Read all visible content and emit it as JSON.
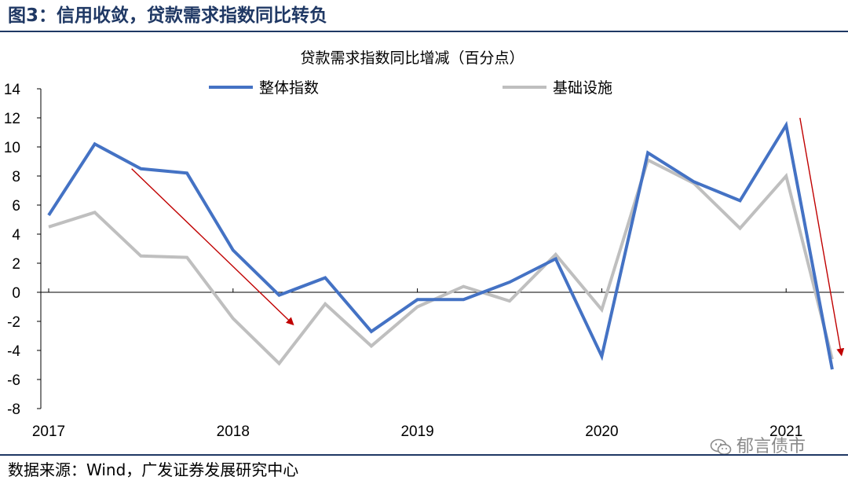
{
  "header": {
    "figure_title": "图3：信用收敛，贷款需求指数同比转负"
  },
  "footer": {
    "source": "数据来源：Wind，广发证券发展研究中心"
  },
  "watermark": {
    "text": "郁言债市",
    "icon": "wechat-icon"
  },
  "colors": {
    "header_blue": "#1f3864",
    "series_total": "#4472c4",
    "series_infra": "#bfbfbf",
    "arrow": "#c00000"
  },
  "chart_data": {
    "type": "line",
    "title": "贷款需求指数同比增减（百分点）",
    "ylim": [
      -8,
      14
    ],
    "yticks": [
      -8,
      -6,
      -4,
      -2,
      0,
      2,
      4,
      6,
      8,
      10,
      12,
      14
    ],
    "year_labels": [
      "2017",
      "2018",
      "2019",
      "2020",
      "2021"
    ],
    "x_quarters": [
      "2017Q1",
      "2017Q2",
      "2017Q3",
      "2017Q4",
      "2018Q1",
      "2018Q2",
      "2018Q3",
      "2018Q4",
      "2019Q1",
      "2019Q2",
      "2019Q3",
      "2019Q4",
      "2020Q1",
      "2020Q2",
      "2020Q3",
      "2020Q4",
      "2021Q1",
      "2021Q2"
    ],
    "legend_position": "top",
    "grid": false,
    "series": [
      {
        "name": "整体指数",
        "color": "#4472c4",
        "values": [
          5.3,
          10.2,
          8.5,
          8.2,
          2.9,
          -0.2,
          1.0,
          -2.7,
          -0.5,
          -0.5,
          0.7,
          2.3,
          -4.4,
          9.6,
          7.6,
          6.3,
          11.5,
          -5.3
        ]
      },
      {
        "name": "基础设施",
        "color": "#bfbfbf",
        "values": [
          4.5,
          5.5,
          2.5,
          2.4,
          -1.8,
          -4.9,
          -0.8,
          -3.7,
          -1.0,
          0.4,
          -0.6,
          2.6,
          -1.2,
          9.1,
          7.5,
          4.4,
          8.0,
          -4.6
        ]
      }
    ],
    "annotations": [
      {
        "type": "arrow",
        "from_x_index": 1.8,
        "from_y": 8.5,
        "to_x_index": 5.3,
        "to_y": -2.2
      },
      {
        "type": "arrow",
        "from_x_index": 16.3,
        "from_y": 12.0,
        "to_x_index": 17.2,
        "to_y": -4.3
      }
    ]
  }
}
